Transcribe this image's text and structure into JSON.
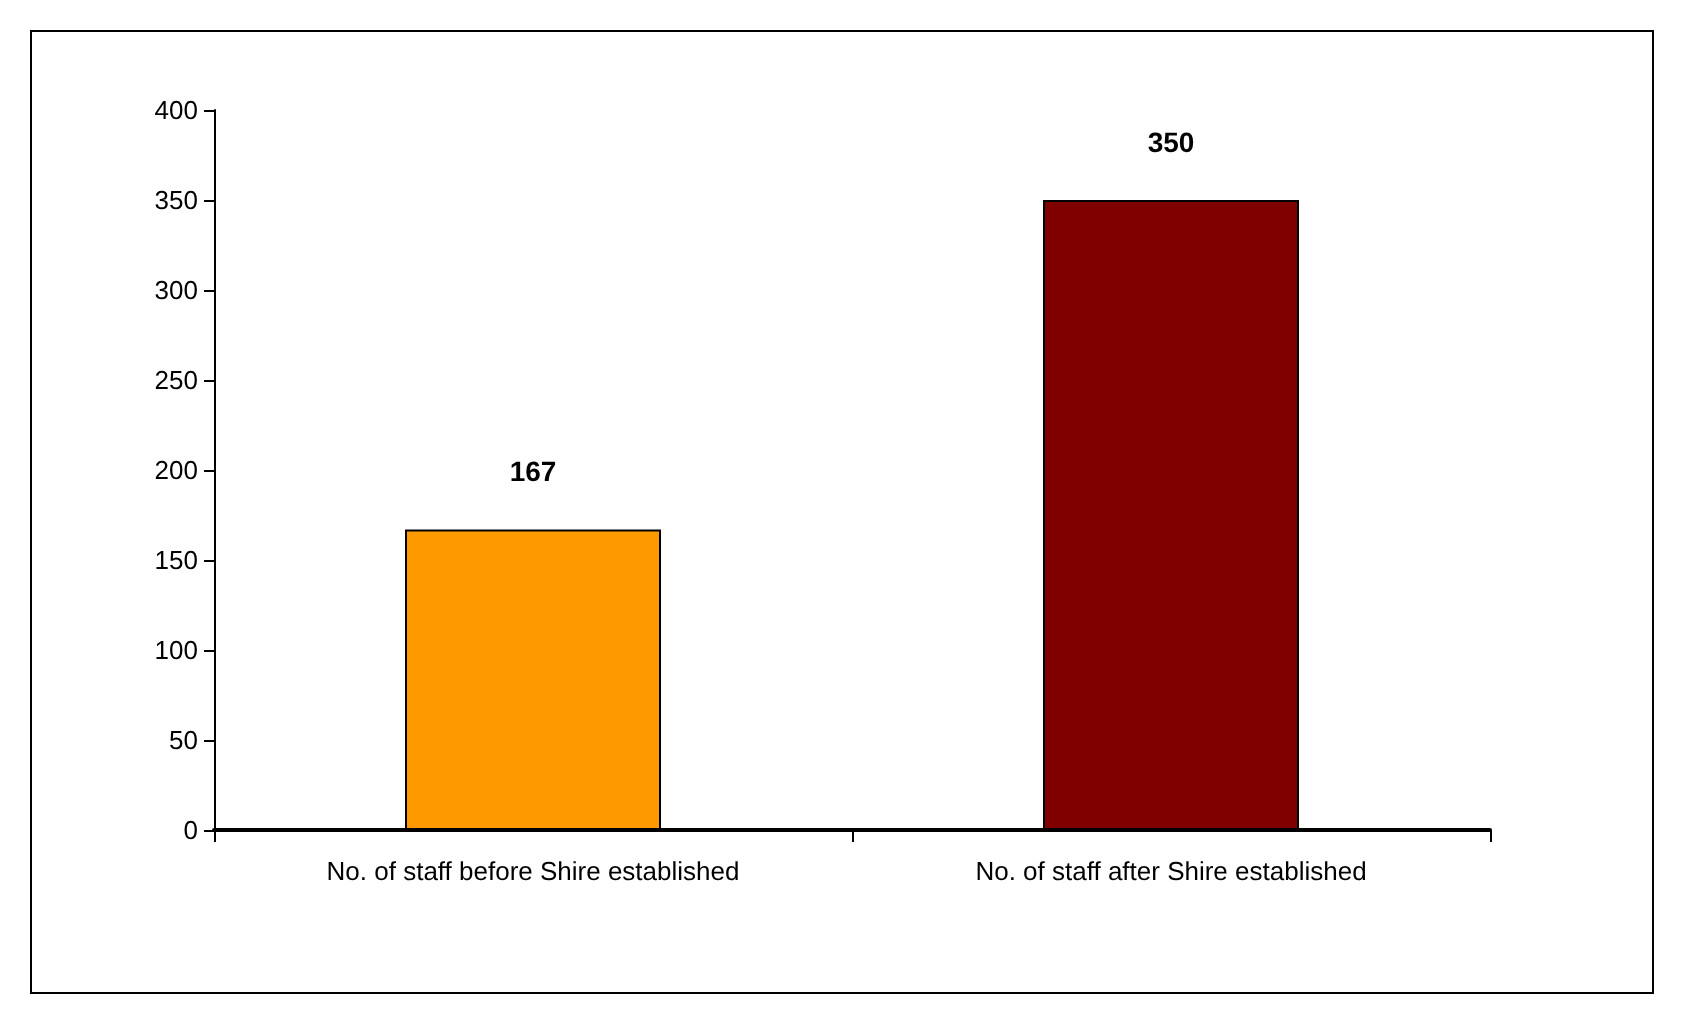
{
  "chart_data": {
    "type": "bar",
    "categories": [
      "No. of staff before Shire established",
      "No. of staff after Shire established"
    ],
    "values": [
      167,
      350
    ],
    "colors": [
      "#ff9900",
      "#800000"
    ],
    "ylim": [
      0,
      400
    ],
    "yticks": [
      0,
      50,
      100,
      150,
      200,
      250,
      300,
      350,
      400
    ],
    "grid": false,
    "data_labels": true
  }
}
